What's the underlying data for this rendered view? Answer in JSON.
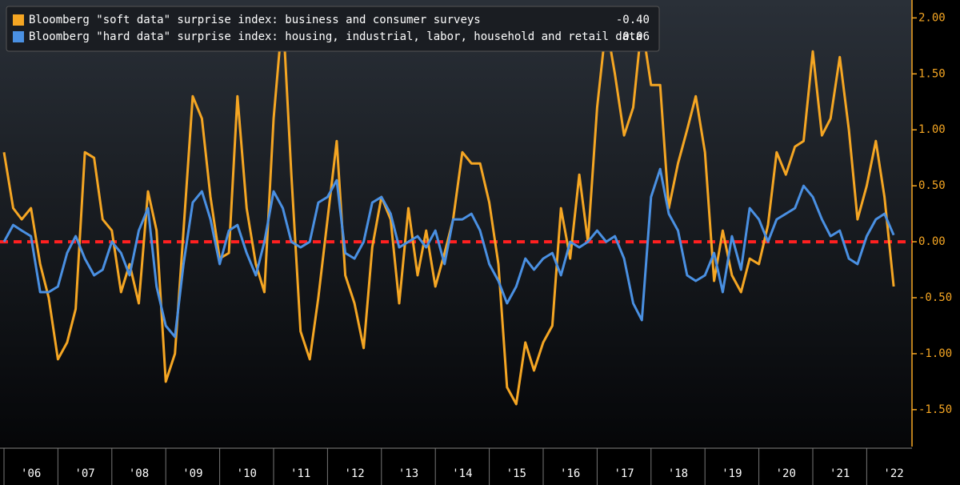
{
  "chart_data": {
    "type": "line",
    "x": [
      2006.0,
      2006.17,
      2006.33,
      2006.5,
      2006.67,
      2006.83,
      2007.0,
      2007.17,
      2007.33,
      2007.5,
      2007.67,
      2007.83,
      2008.0,
      2008.17,
      2008.33,
      2008.5,
      2008.67,
      2008.83,
      2009.0,
      2009.17,
      2009.33,
      2009.5,
      2009.67,
      2009.83,
      2010.0,
      2010.17,
      2010.33,
      2010.5,
      2010.67,
      2010.83,
      2011.0,
      2011.17,
      2011.33,
      2011.5,
      2011.67,
      2011.83,
      2012.0,
      2012.17,
      2012.33,
      2012.5,
      2012.67,
      2012.83,
      2013.0,
      2013.17,
      2013.33,
      2013.5,
      2013.67,
      2013.83,
      2014.0,
      2014.17,
      2014.33,
      2014.5,
      2014.67,
      2014.83,
      2015.0,
      2015.17,
      2015.33,
      2015.5,
      2015.67,
      2015.83,
      2016.0,
      2016.17,
      2016.33,
      2016.5,
      2016.67,
      2016.83,
      2017.0,
      2017.17,
      2017.33,
      2017.5,
      2017.67,
      2017.83,
      2018.0,
      2018.17,
      2018.33,
      2018.5,
      2018.67,
      2018.83,
      2019.0,
      2019.17,
      2019.33,
      2019.5,
      2019.67,
      2019.83,
      2020.0,
      2020.17,
      2020.33,
      2020.5,
      2020.67,
      2020.83,
      2021.0,
      2021.17,
      2021.33,
      2021.5,
      2021.67,
      2021.83,
      2022.0,
      2022.17,
      2022.33,
      2022.5
    ],
    "series": [
      {
        "name": "Bloomberg \"soft data\" surprise index: business and consumer surveys",
        "last_value_label": "-0.40",
        "color": "#f5a623",
        "values": [
          0.8,
          0.3,
          0.2,
          0.3,
          -0.2,
          -0.5,
          -1.05,
          -0.9,
          -0.6,
          0.8,
          0.75,
          0.2,
          0.1,
          -0.45,
          -0.2,
          -0.55,
          0.45,
          0.1,
          -1.25,
          -1.0,
          0.1,
          1.3,
          1.1,
          0.4,
          -0.15,
          -0.1,
          1.3,
          0.3,
          -0.2,
          -0.45,
          1.1,
          2.05,
          0.6,
          -0.8,
          -1.05,
          -0.5,
          0.2,
          0.9,
          -0.3,
          -0.55,
          -0.95,
          -0.05,
          0.4,
          0.2,
          -0.55,
          0.3,
          -0.3,
          0.1,
          -0.4,
          -0.1,
          0.2,
          0.8,
          0.7,
          0.7,
          0.35,
          -0.2,
          -1.3,
          -1.45,
          -0.9,
          -1.15,
          -0.9,
          -0.75,
          0.3,
          -0.15,
          0.6,
          0.0,
          1.2,
          1.95,
          1.5,
          0.95,
          1.2,
          1.95,
          1.4,
          1.4,
          0.3,
          0.7,
          1.0,
          1.3,
          0.8,
          -0.35,
          0.1,
          -0.3,
          -0.45,
          -0.15,
          -0.2,
          0.15,
          0.8,
          0.6,
          0.85,
          0.9,
          1.7,
          0.95,
          1.1,
          1.65,
          1.0,
          0.2,
          0.5,
          0.9,
          0.4,
          -0.4
        ]
      },
      {
        "name": "Bloomberg \"hard data\" surprise index: housing, industrial, labor, household and retail data",
        "last_value_label": "0.06",
        "color": "#4a90e2",
        "values": [
          0.0,
          0.15,
          0.1,
          0.05,
          -0.45,
          -0.45,
          -0.4,
          -0.1,
          0.05,
          -0.15,
          -0.3,
          -0.25,
          0.0,
          -0.1,
          -0.3,
          0.1,
          0.3,
          -0.4,
          -0.75,
          -0.85,
          -0.2,
          0.35,
          0.45,
          0.2,
          -0.2,
          0.1,
          0.15,
          -0.1,
          -0.3,
          0.0,
          0.45,
          0.3,
          0.0,
          -0.05,
          0.0,
          0.35,
          0.4,
          0.55,
          -0.1,
          -0.15,
          0.0,
          0.35,
          0.4,
          0.25,
          -0.05,
          0.0,
          0.05,
          -0.05,
          0.1,
          -0.2,
          0.2,
          0.2,
          0.25,
          0.1,
          -0.2,
          -0.35,
          -0.55,
          -0.4,
          -0.15,
          -0.25,
          -0.15,
          -0.1,
          -0.3,
          0.0,
          -0.05,
          0.0,
          0.1,
          0.0,
          0.05,
          -0.15,
          -0.55,
          -0.7,
          0.4,
          0.65,
          0.25,
          0.1,
          -0.3,
          -0.35,
          -0.3,
          -0.1,
          -0.45,
          0.05,
          -0.25,
          0.3,
          0.2,
          0.0,
          0.2,
          0.25,
          0.3,
          0.5,
          0.4,
          0.2,
          0.05,
          0.1,
          -0.15,
          -0.2,
          0.05,
          0.2,
          0.25,
          0.06
        ]
      }
    ],
    "xlim": [
      2006,
      2022.84
    ],
    "xticks": [
      {
        "value": 2006.5,
        "label": "'06"
      },
      {
        "value": 2007.5,
        "label": "'07"
      },
      {
        "value": 2008.5,
        "label": "'08"
      },
      {
        "value": 2009.5,
        "label": "'09"
      },
      {
        "value": 2010.5,
        "label": "'10"
      },
      {
        "value": 2011.5,
        "label": "'11"
      },
      {
        "value": 2012.5,
        "label": "'12"
      },
      {
        "value": 2013.5,
        "label": "'13"
      },
      {
        "value": 2014.5,
        "label": "'14"
      },
      {
        "value": 2015.5,
        "label": "'15"
      },
      {
        "value": 2016.5,
        "label": "'16"
      },
      {
        "value": 2017.5,
        "label": "'17"
      },
      {
        "value": 2018.5,
        "label": "'18"
      },
      {
        "value": 2019.5,
        "label": "'19"
      },
      {
        "value": 2020.5,
        "label": "'20"
      },
      {
        "value": 2021.5,
        "label": "'21"
      },
      {
        "value": 2022.5,
        "label": "'22"
      }
    ],
    "ylim": [
      -1.83,
      2.16
    ],
    "yticks": [
      {
        "value": -1.5,
        "label": "-1.50"
      },
      {
        "value": -1,
        "label": "-1.00"
      },
      {
        "value": -0.5,
        "label": "-0.50"
      },
      {
        "value": 0,
        "label": "0.00"
      },
      {
        "value": 0.5,
        "label": "0.50"
      },
      {
        "value": 1,
        "label": "1.00"
      },
      {
        "value": 1.5,
        "label": "1.50"
      },
      {
        "value": 2,
        "label": "2.00"
      }
    ],
    "reference_line": {
      "value": 0,
      "color": "#ff2020"
    },
    "axis_color": "#f5a623"
  }
}
